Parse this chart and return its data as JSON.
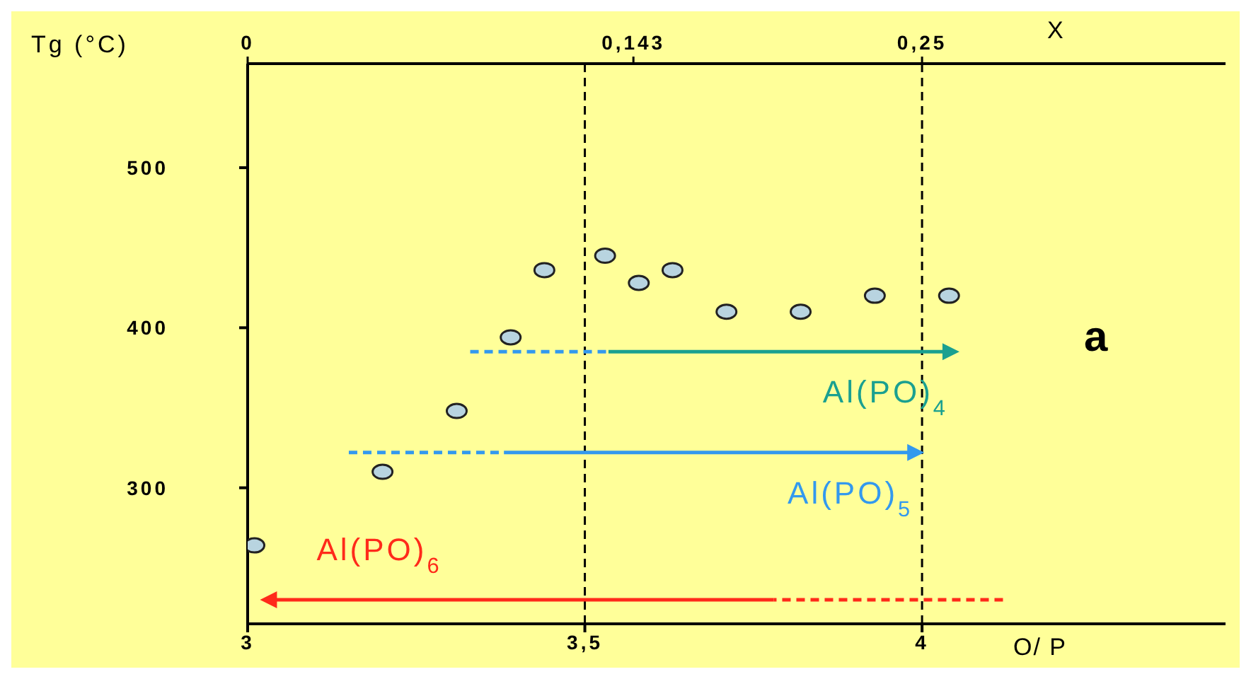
{
  "chart_data": {
    "type": "scatter",
    "xlabel": "O/ P",
    "x2label": "X",
    "ylabel": "Tg (°C)",
    "annotations": [
      "a",
      {
        "text": "Al(PO)$_{4}$",
        "x": 3.535,
        "y": 385
      },
      {
        "text": "Al(PO)$_{5}$",
        "x": 3.38,
        "y": 322
      },
      "Al(PO)$_{6}$"
    ],
    "xlim": [
      3,
      4.45
    ],
    "xticks": [
      3,
      {
        "value": 3.5,
        "label": "3,5"
      },
      4
    ],
    "x2lim": [
      0,
      0.3625
    ],
    "x2ticks": [
      0,
      {
        "value": 0.143,
        "label": "0,143"
      },
      {
        "value": 0.25,
        "label": "0,25"
      }
    ],
    "ylim": [
      215,
      565
    ],
    "yticks": [
      300,
      400,
      500
    ],
    "grid": false,
    "legend": false,
    "ref_lines": [
      {
        "axis": "x",
        "value": 3.5,
        "color": "#000000",
        "line_style": "dashed"
      },
      {
        "axis": "x",
        "value": 4,
        "color": "#000000",
        "line_style": "dashed"
      }
    ],
    "series": [
      {
        "color": "#b8d4e0",
        "marker": "circle",
        "x": [
          3.01,
          3.2,
          3.31,
          3.39,
          3.44,
          3.53,
          3.58,
          3.63,
          3.71,
          3.82,
          3.93,
          4.04
        ],
        "values": [
          264,
          310,
          348,
          394,
          436,
          445,
          428,
          436,
          410,
          410,
          420,
          420
        ]
      },
      {
        "type": "line",
        "color": "#3399ee",
        "line_style": "dashed",
        "marker": "none",
        "x": [
          3.33,
          3.535
        ],
        "values": [
          385,
          385
        ]
      },
      {
        "type": "line",
        "color": "#3399ee",
        "line_style": "dashed",
        "marker": "none",
        "x": [
          3.15,
          3.38
        ],
        "values": [
          322,
          322
        ]
      },
      {
        "type": "line",
        "color": "#ff2a1a",
        "line_style": "dashed",
        "marker": "none",
        "x": [
          4.12,
          3.78
        ],
        "values": [
          230,
          230
        ]
      }
    ]
  }
}
